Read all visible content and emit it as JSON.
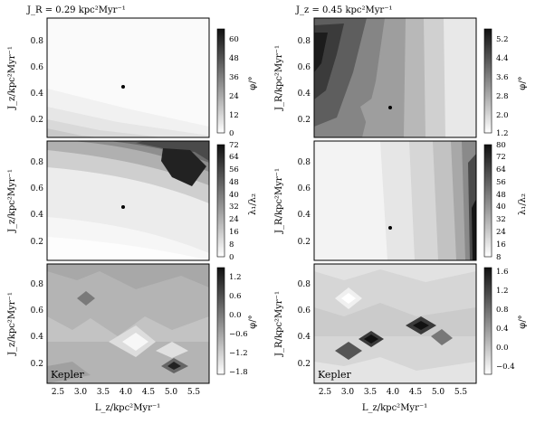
{
  "chart_data": [
    {
      "type": "contour",
      "panel": "top-left",
      "title": "J_R = 0.29 kpc²Myr⁻¹",
      "ylabel": "J_z/kpc²Myr⁻¹",
      "xlim": [
        2.2,
        5.8
      ],
      "ylim": [
        0.05,
        0.95
      ],
      "yticks": [
        "0.2",
        "0.4",
        "0.6",
        "0.8"
      ],
      "colorbar_label": "φ/°",
      "colorbar_ticks": [
        "0",
        "12",
        "24",
        "36",
        "48",
        "60"
      ],
      "colorbar_range": [
        0,
        66
      ],
      "marker": {
        "x": 3.9,
        "y": 0.45
      },
      "note": ""
    },
    {
      "type": "contour",
      "panel": "middle-left",
      "title": "",
      "ylabel": "J_z/kpc²Myr⁻¹",
      "xlim": [
        2.2,
        5.8
      ],
      "ylim": [
        0.05,
        0.95
      ],
      "yticks": [
        "0.2",
        "0.4",
        "0.6",
        "0.8"
      ],
      "colorbar_label": "λ₁/λ₂",
      "colorbar_ticks": [
        "0",
        "8",
        "16",
        "24",
        "32",
        "40",
        "48",
        "56",
        "64",
        "72"
      ],
      "colorbar_range": [
        0,
        72
      ],
      "marker": {
        "x": 3.9,
        "y": 0.45
      },
      "note": ""
    },
    {
      "type": "contour",
      "panel": "bottom-left",
      "title": "",
      "xlabel": "L_z/kpc²Myr⁻¹",
      "ylabel": "J_z/kpc²Myr⁻¹",
      "xlim": [
        2.2,
        5.8
      ],
      "ylim": [
        0.05,
        0.95
      ],
      "xticks": [
        "2.5",
        "3.0",
        "3.5",
        "4.0",
        "4.5",
        "5.0",
        "5.5"
      ],
      "yticks": [
        "0.2",
        "0.4",
        "0.6",
        "0.8"
      ],
      "colorbar_label": "φ/°",
      "colorbar_ticks": [
        "−1.8",
        "−1.2",
        "−0.6",
        "0.0",
        "0.6",
        "1.2"
      ],
      "colorbar_range": [
        -1.8,
        1.5
      ],
      "note": "Kepler"
    },
    {
      "type": "contour",
      "panel": "top-right",
      "title": "J_z = 0.45 kpc²Myr⁻¹",
      "ylabel": "J_R/kpc²Myr⁻¹",
      "xlim": [
        2.2,
        5.8
      ],
      "ylim": [
        0.05,
        0.95
      ],
      "yticks": [
        "0.2",
        "0.4",
        "0.6",
        "0.8"
      ],
      "colorbar_label": "φ/°",
      "colorbar_ticks": [
        "1.2",
        "2.0",
        "2.8",
        "3.6",
        "4.4",
        "5.2"
      ],
      "colorbar_range": [
        1.2,
        5.6
      ],
      "marker": {
        "x": 3.9,
        "y": 0.29
      },
      "note": ""
    },
    {
      "type": "contour",
      "panel": "middle-right",
      "title": "",
      "ylabel": "J_R/kpc²Myr⁻¹",
      "xlim": [
        2.2,
        5.8
      ],
      "ylim": [
        0.05,
        0.95
      ],
      "yticks": [
        "0.2",
        "0.4",
        "0.6",
        "0.8"
      ],
      "colorbar_label": "λ₁/λ₂",
      "colorbar_ticks": [
        "8",
        "16",
        "24",
        "32",
        "40",
        "48",
        "56",
        "64",
        "72",
        "80"
      ],
      "colorbar_range": [
        8,
        80
      ],
      "marker": {
        "x": 3.9,
        "y": 0.29
      },
      "note": ""
    },
    {
      "type": "contour",
      "panel": "bottom-right",
      "title": "",
      "xlabel": "L_z/kpc²Myr⁻¹",
      "ylabel": "J_R/kpc²Myr⁻¹",
      "xlim": [
        2.2,
        5.8
      ],
      "ylim": [
        0.05,
        0.95
      ],
      "xticks": [
        "2.5",
        "3.0",
        "3.5",
        "4.0",
        "4.5",
        "5.0",
        "5.5"
      ],
      "yticks": [
        "0.2",
        "0.4",
        "0.6",
        "0.8"
      ],
      "colorbar_label": "φ/°",
      "colorbar_ticks": [
        "−0.4",
        "0.0",
        "0.4",
        "0.8",
        "1.2",
        "1.6"
      ],
      "colorbar_range": [
        -0.6,
        1.7
      ],
      "note": "Kepler"
    }
  ]
}
